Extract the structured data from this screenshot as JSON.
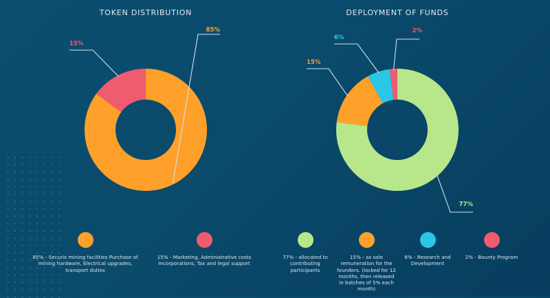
{
  "chart_data": [
    {
      "type": "pie",
      "variant": "donut",
      "title": "TOKEN DISTRIBUTION",
      "start_angle_deg": 0,
      "direction": "counterclockwise-from-top-for-small",
      "slices": [
        {
          "label": "85% - Securix mining facilities Purchase of mining hardware, Electrical upgrades, transport duties",
          "value": 85,
          "display": "85%",
          "color": "#ffa02a"
        },
        {
          "label": "15% - Marketing, Administrative costs Incorporations, Tax and legal support",
          "value": 15,
          "display": "15%",
          "color": "#ef5b6f"
        }
      ]
    },
    {
      "type": "pie",
      "variant": "donut",
      "title": "DEPLOYMENT OF FUNDS",
      "slices": [
        {
          "label": "77% - allocated to contributing participants",
          "value": 77,
          "display": "77%",
          "color": "#b8e68a"
        },
        {
          "label": "15% - as sole remuneration for the founders. (locked for 12 months, then released in batches of 5% each month)",
          "value": 15,
          "display": "15%",
          "color": "#ffa02a"
        },
        {
          "label": "6% - Research and Development",
          "value": 6,
          "display": "6%",
          "color": "#2cc7e6"
        },
        {
          "label": "2% - Bounty Program",
          "value": 2,
          "display": "2%",
          "color": "#ef5b6f"
        }
      ]
    }
  ],
  "colors": {
    "background": "#0a4a6b",
    "leader_line": "#d7e3ea",
    "title_text": "#e4eef5"
  }
}
